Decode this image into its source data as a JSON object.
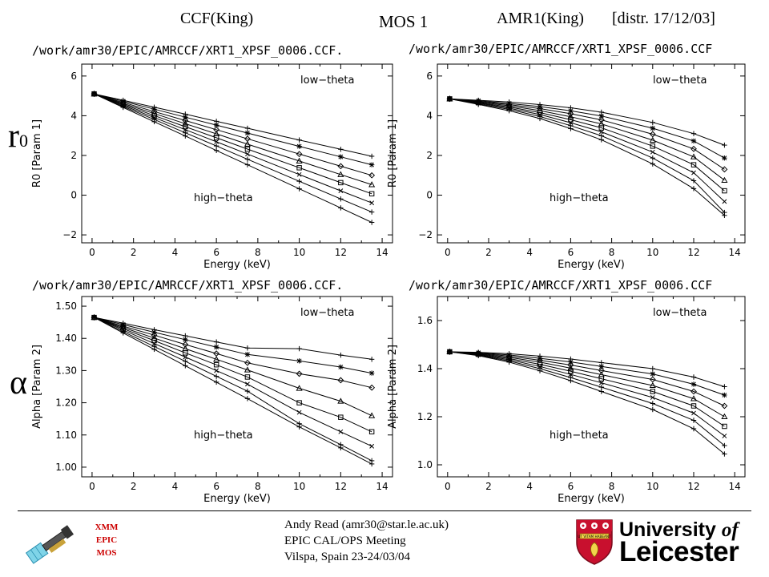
{
  "header": {
    "left": "CCF(King)",
    "center": "MOS 1",
    "right": "AMR1(King)",
    "right_note": "[distr. 17/12/03]"
  },
  "rows": [
    {
      "label_main": "r",
      "label_sub": "0"
    },
    {
      "label_main": "α",
      "label_sub": ""
    }
  ],
  "footer": {
    "logo_lines": [
      "XMM",
      "EPIC",
      "MOS"
    ],
    "credit_lines": [
      "Andy Read (amr30@star.le.ac.uk)",
      "EPIC CAL/OPS Meeting",
      "Vilspa, Spain 23-24/03/04"
    ],
    "university_line1": "University",
    "university_of": "of",
    "university_line2": "Leicester",
    "shield_text": "UT VITAM HABEANT",
    "satellite_icon": "satellite-icon",
    "shield_icon": "university-shield-icon"
  },
  "chart_data": [
    {
      "type": "line",
      "path": "/work/amr30/EPIC/AMRCCF/XRT1_XPSF_0006.CCF.",
      "xlabel": "Energy (keV)",
      "ylabel": "R0 [Param 1]",
      "xlim": [
        -0.5,
        14.5
      ],
      "ylim": [
        -2.4,
        6.6
      ],
      "xticks": [
        0,
        2,
        4,
        6,
        8,
        10,
        12,
        14
      ],
      "xtick_labels": [
        "0",
        "2",
        "4",
        "6",
        "8",
        "10",
        "12",
        "14"
      ],
      "yticks": [
        -2,
        0,
        2,
        4,
        6
      ],
      "ytick_labels": [
        "−2",
        "0",
        "2",
        "4",
        "6"
      ],
      "annot_top": "low−theta",
      "annot_bottom": "high−theta",
      "x": [
        0.1,
        1.5,
        3.0,
        4.5,
        6.0,
        7.5,
        10.0,
        12.0,
        13.5
      ],
      "series": [
        {
          "marker": "plus",
          "values": [
            5.1,
            4.78,
            4.43,
            4.08,
            3.72,
            3.37,
            2.78,
            2.31,
            1.96
          ]
        },
        {
          "marker": "asterisk",
          "values": [
            5.1,
            4.73,
            4.33,
            3.93,
            3.53,
            3.13,
            2.46,
            1.93,
            1.53
          ]
        },
        {
          "marker": "diamond",
          "values": [
            5.1,
            4.67,
            4.21,
            3.76,
            3.3,
            2.84,
            2.07,
            1.46,
            1.0
          ]
        },
        {
          "marker": "triangle",
          "values": [
            5.1,
            4.62,
            4.11,
            3.6,
            3.09,
            2.57,
            1.72,
            1.04,
            0.53
          ]
        },
        {
          "marker": "square",
          "values": [
            5.1,
            4.57,
            4.01,
            3.45,
            2.89,
            2.32,
            1.38,
            0.63,
            0.07
          ]
        },
        {
          "marker": "x",
          "values": [
            5.1,
            4.52,
            3.91,
            3.3,
            2.69,
            2.07,
            1.04,
            0.22,
            -0.39
          ]
        },
        {
          "marker": "plus",
          "values": [
            5.1,
            4.47,
            3.81,
            3.14,
            2.48,
            1.81,
            0.7,
            -0.19,
            -0.85
          ]
        },
        {
          "marker": "plus",
          "values": [
            5.1,
            4.42,
            3.7,
            2.98,
            2.25,
            1.53,
            0.32,
            -0.64,
            -1.37
          ]
        }
      ]
    },
    {
      "type": "line",
      "path": "/work/amr30/EPIC/AMRCCF/XRT1_XPSF_0006.CCF",
      "xlabel": "Energy (keV)",
      "ylabel": "R0 [Param 1]",
      "xlim": [
        -0.5,
        14.5
      ],
      "ylim": [
        -2.4,
        6.6
      ],
      "xticks": [
        0,
        2,
        4,
        6,
        8,
        10,
        12,
        14
      ],
      "xtick_labels": [
        "0",
        "2",
        "4",
        "6",
        "8",
        "10",
        "12",
        "14"
      ],
      "yticks": [
        -2,
        0,
        2,
        4,
        6
      ],
      "ytick_labels": [
        "−2",
        "0",
        "2",
        "4",
        "6"
      ],
      "annot_top": "low−theta",
      "annot_bottom": "high−theta",
      "x": [
        0.1,
        1.5,
        3.0,
        4.5,
        6.0,
        7.5,
        10.0,
        12.0,
        13.5
      ],
      "series": [
        {
          "marker": "plus",
          "values": [
            4.85,
            4.78,
            4.69,
            4.56,
            4.4,
            4.18,
            3.66,
            3.1,
            2.52
          ]
        },
        {
          "marker": "asterisk",
          "values": [
            4.85,
            4.75,
            4.62,
            4.46,
            4.25,
            3.99,
            3.37,
            2.73,
            1.87
          ]
        },
        {
          "marker": "diamond",
          "values": [
            4.85,
            4.72,
            4.56,
            4.36,
            4.1,
            3.79,
            3.07,
            2.33,
            1.3
          ]
        },
        {
          "marker": "triangle",
          "values": [
            4.85,
            4.69,
            4.5,
            4.26,
            3.95,
            3.59,
            2.77,
            1.93,
            0.75
          ]
        },
        {
          "marker": "square",
          "values": [
            4.85,
            4.66,
            4.44,
            4.16,
            3.8,
            3.39,
            2.47,
            1.53,
            0.22
          ]
        },
        {
          "marker": "x",
          "values": [
            4.85,
            4.63,
            4.38,
            4.06,
            3.65,
            3.19,
            2.17,
            1.13,
            -0.32
          ]
        },
        {
          "marker": "plus",
          "values": [
            4.85,
            4.6,
            4.32,
            3.96,
            3.5,
            2.99,
            1.87,
            0.73,
            -0.87
          ]
        },
        {
          "marker": "plus",
          "values": [
            4.85,
            4.57,
            4.25,
            3.86,
            3.35,
            2.79,
            1.57,
            0.33,
            -1.02
          ]
        }
      ]
    },
    {
      "type": "line",
      "path": "/work/amr30/EPIC/AMRCCF/XRT1_XPSF_0006.CCF.",
      "xlabel": "Energy (keV)",
      "ylabel": "Alpha [Param 2]",
      "xlim": [
        -0.5,
        14.5
      ],
      "ylim": [
        0.97,
        1.53
      ],
      "xticks": [
        0,
        2,
        4,
        6,
        8,
        10,
        12,
        14
      ],
      "xtick_labels": [
        "0",
        "2",
        "4",
        "6",
        "8",
        "10",
        "12",
        "14"
      ],
      "yticks": [
        1.0,
        1.1,
        1.2,
        1.3,
        1.4,
        1.5
      ],
      "ytick_labels": [
        "1.00",
        "1.10",
        "1.20",
        "1.30",
        "1.40",
        "1.50"
      ],
      "annot_top": "low−theta",
      "annot_bottom": "high−theta",
      "x": [
        0.1,
        1.5,
        3.0,
        4.5,
        6.0,
        7.5,
        10.0,
        12.0,
        13.5
      ],
      "series": [
        {
          "marker": "plus",
          "values": [
            1.465,
            1.447,
            1.427,
            1.408,
            1.389,
            1.37,
            1.368,
            1.348,
            1.335
          ]
        },
        {
          "marker": "asterisk",
          "values": [
            1.465,
            1.443,
            1.419,
            1.396,
            1.373,
            1.35,
            1.33,
            1.311,
            1.292
          ]
        },
        {
          "marker": "diamond",
          "values": [
            1.465,
            1.438,
            1.41,
            1.381,
            1.353,
            1.324,
            1.29,
            1.27,
            1.247
          ]
        },
        {
          "marker": "triangle",
          "values": [
            1.465,
            1.434,
            1.401,
            1.368,
            1.335,
            1.302,
            1.245,
            1.205,
            1.16
          ]
        },
        {
          "marker": "square",
          "values": [
            1.465,
            1.43,
            1.393,
            1.355,
            1.318,
            1.28,
            1.2,
            1.155,
            1.11
          ]
        },
        {
          "marker": "x",
          "values": [
            1.465,
            1.426,
            1.384,
            1.342,
            1.3,
            1.258,
            1.17,
            1.11,
            1.065
          ]
        },
        {
          "marker": "plus",
          "values": [
            1.465,
            1.421,
            1.375,
            1.329,
            1.282,
            1.236,
            1.135,
            1.07,
            1.02
          ]
        },
        {
          "marker": "plus",
          "values": [
            1.465,
            1.417,
            1.366,
            1.315,
            1.264,
            1.213,
            1.125,
            1.06,
            1.01
          ]
        }
      ]
    },
    {
      "type": "line",
      "path": "/work/amr30/EPIC/AMRCCF/XRT1_XPSF_0006.CCF",
      "xlabel": "Energy (keV)",
      "ylabel": "Alpha [Param 2]",
      "xlim": [
        -0.5,
        14.5
      ],
      "ylim": [
        0.95,
        1.7
      ],
      "xticks": [
        0,
        2,
        4,
        6,
        8,
        10,
        12,
        14
      ],
      "xtick_labels": [
        "0",
        "2",
        "4",
        "6",
        "8",
        "10",
        "12",
        "14"
      ],
      "yticks": [
        1.0,
        1.2,
        1.4,
        1.6
      ],
      "ytick_labels": [
        "1.0",
        "1.2",
        "1.4",
        "1.6"
      ],
      "annot_top": "low−theta",
      "annot_bottom": "high−theta",
      "x": [
        0.1,
        1.5,
        3.0,
        4.5,
        6.0,
        7.5,
        10.0,
        12.0,
        13.5
      ],
      "series": [
        {
          "marker": "plus",
          "values": [
            1.47,
            1.468,
            1.462,
            1.452,
            1.44,
            1.425,
            1.4,
            1.365,
            1.325
          ]
        },
        {
          "marker": "asterisk",
          "values": [
            1.47,
            1.466,
            1.457,
            1.443,
            1.428,
            1.409,
            1.378,
            1.335,
            1.29
          ]
        },
        {
          "marker": "diamond",
          "values": [
            1.47,
            1.464,
            1.452,
            1.435,
            1.415,
            1.392,
            1.355,
            1.305,
            1.245
          ]
        },
        {
          "marker": "triangle",
          "values": [
            1.47,
            1.462,
            1.447,
            1.427,
            1.402,
            1.375,
            1.33,
            1.275,
            1.2
          ]
        },
        {
          "marker": "square",
          "values": [
            1.47,
            1.46,
            1.442,
            1.418,
            1.389,
            1.358,
            1.305,
            1.245,
            1.16
          ]
        },
        {
          "marker": "x",
          "values": [
            1.47,
            1.458,
            1.437,
            1.409,
            1.376,
            1.341,
            1.28,
            1.215,
            1.12
          ]
        },
        {
          "marker": "plus",
          "values": [
            1.47,
            1.456,
            1.432,
            1.4,
            1.363,
            1.323,
            1.255,
            1.185,
            1.08
          ]
        },
        {
          "marker": "plus",
          "values": [
            1.47,
            1.454,
            1.427,
            1.391,
            1.35,
            1.305,
            1.23,
            1.15,
            1.045
          ]
        }
      ]
    }
  ]
}
